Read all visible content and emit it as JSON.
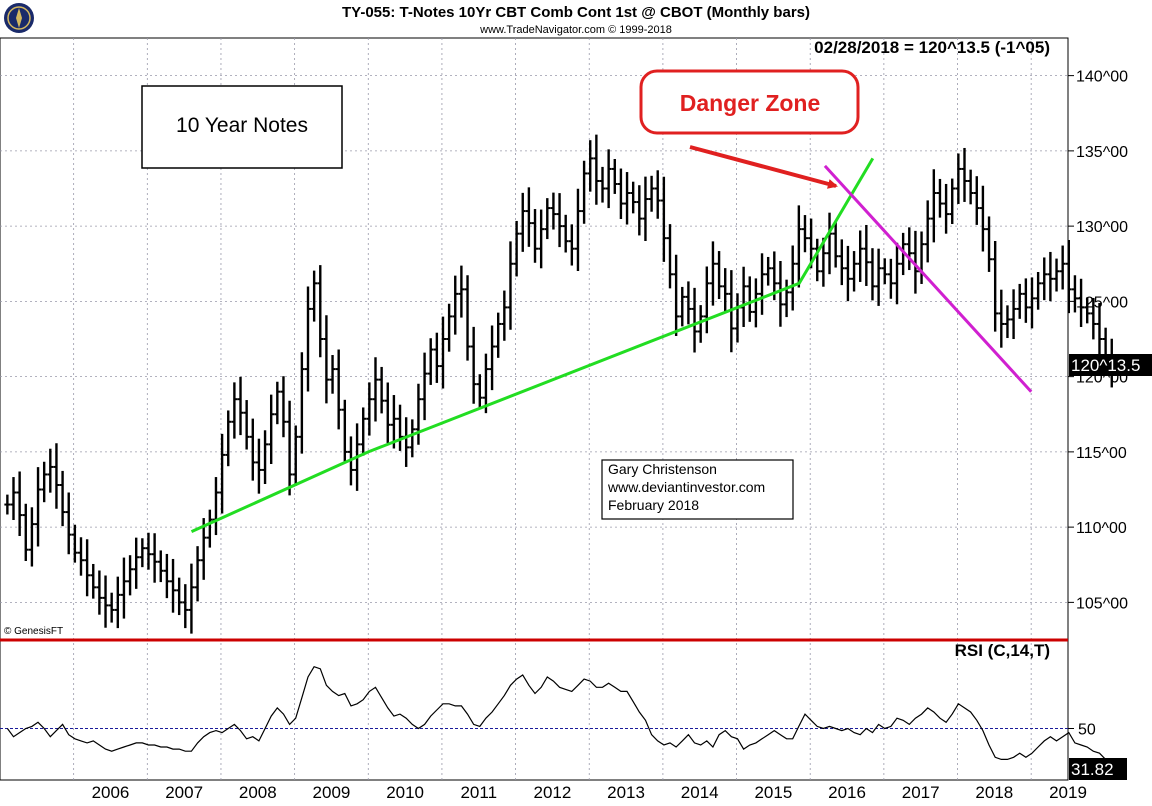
{
  "header": {
    "title": "TY-055:  T-Notes 10Yr CBT Comb Cont 1st @ CBOT  (Monthly bars)",
    "copyright": "www.TradeNavigator.com © 1999-2018",
    "logo_icon": "compass-logo-icon"
  },
  "price_readout": "02/28/2018 = 120^13.5 (-1^05)",
  "last_price_tag": "120^13.5",
  "genesis_label": "© GenesisFT",
  "annotations": {
    "box_label": "10 Year Notes",
    "danger_zone": "Danger Zone",
    "author": [
      "Gary Christenson",
      "www.deviantinvestor.com",
      "February 2018"
    ]
  },
  "colors": {
    "support_line": "#22dd22",
    "resistance_line": "#d020d0",
    "danger": "#e02020",
    "divider": "#cc0000",
    "rsi_line": "#000000",
    "rsi_midline": "#1a1a99"
  },
  "chart_data": [
    {
      "type": "ohlc",
      "title": "TY-055:  T-Notes 10Yr CBT Comb Cont 1st @ CBOT  (Monthly bars)",
      "y_ticks": [
        "105^00",
        "110^00",
        "115^00",
        "120^00",
        "125^00",
        "130^00",
        "135^00",
        "140^00"
      ],
      "y_tick_values": [
        105,
        110,
        115,
        120,
        125,
        130,
        135,
        140
      ],
      "ylim": [
        102.5,
        142.5
      ],
      "x_ticks": [
        "2006",
        "2007",
        "2008",
        "2009",
        "2010",
        "2011",
        "2012",
        "2013",
        "2014",
        "2015",
        "2016",
        "2017",
        "2018",
        "2019"
      ],
      "x_range": [
        2005.0,
        2019.5
      ],
      "series": [
        {
          "type": "monthly-bars",
          "start": 2005.1,
          "step": 0.0833,
          "closes": [
            111.5,
            112.3,
            110.8,
            108.5,
            110.2,
            112.5,
            113.5,
            114.0,
            112.8,
            111.0,
            109.5,
            108.3,
            107.8,
            106.8,
            106.0,
            105.3,
            104.8,
            104.5,
            105.5,
            106.4,
            107.2,
            108.0,
            108.6,
            108.2,
            107.7,
            107.1,
            106.4,
            105.8,
            105.0,
            104.5,
            106.0,
            107.8,
            109.3,
            110.5,
            112.3,
            114.8,
            117.0,
            118.5,
            117.6,
            116.0,
            114.3,
            113.8,
            115.5,
            117.5,
            119.0,
            117.0,
            113.5,
            116.0,
            120.5,
            124.5,
            126.2,
            122.5,
            119.8,
            120.5,
            117.8,
            115.0,
            113.8,
            115.5,
            117.2,
            118.5,
            119.8,
            118.4,
            116.8,
            117.2,
            116.0,
            115.3,
            116.5,
            118.5,
            120.2,
            121.8,
            120.7,
            122.5,
            124.0,
            125.5,
            125.8,
            122.0,
            119.5,
            118.6,
            120.5,
            122.0,
            123.5,
            124.6,
            127.5,
            129.5,
            131.0,
            130.2,
            128.5,
            129.8,
            131.2,
            130.8,
            130.0,
            129.0,
            128.5,
            131.0,
            133.5,
            134.5,
            133.0,
            132.5,
            133.8,
            132.8,
            131.5,
            132.2,
            131.6,
            130.5,
            131.8,
            132.5,
            131.7,
            129.2,
            126.8,
            124.0,
            125.3,
            124.5,
            123.0,
            124.0,
            126.2,
            127.5,
            126.0,
            125.5,
            123.2,
            124.6,
            126.0,
            124.3,
            125.5,
            126.8,
            127.2,
            126.2,
            124.8,
            125.6,
            127.5,
            129.8,
            129.2,
            128.5,
            127.0,
            128.2,
            129.5,
            128.0,
            127.2,
            126.5,
            127.5,
            128.5,
            127.6,
            126.0,
            127.2,
            126.8,
            126.2,
            127.5,
            128.8,
            128.2,
            127.0,
            128.8,
            130.5,
            132.2,
            131.5,
            130.8,
            132.5,
            133.8,
            133.0,
            132.2,
            131.2,
            129.8,
            127.8,
            124.2,
            123.5,
            123.8,
            124.5,
            125.5,
            124.6,
            125.2,
            126.2,
            126.8,
            126.5,
            127.0,
            127.5,
            125.8,
            125.2,
            124.6,
            124.2,
            123.5,
            122.5,
            121.4,
            120.4
          ],
          "name": ""
        },
        {
          "type": "trendline",
          "name": "",
          "points": [
            [
              2007.6,
              109.7
            ],
            [
              2010.0,
              115.0
            ],
            [
              2015.85,
              126.2
            ],
            [
              2016.85,
              134.5
            ]
          ]
        },
        {
          "type": "trendline",
          "name": "",
          "points": [
            [
              2016.2,
              134.0
            ],
            [
              2019.0,
              119.0
            ]
          ]
        }
      ]
    },
    {
      "type": "line",
      "title": "RSI (C,14,T)",
      "y_ticks": [
        "50"
      ],
      "midline": 50,
      "ylim": [
        25,
        92
      ],
      "last_value": "31.82",
      "series": [
        {
          "name": "",
          "start": 2005.1,
          "step": 0.0833,
          "values": [
            50,
            46,
            48,
            50,
            51,
            53,
            50,
            46,
            49,
            52,
            47,
            45,
            44,
            43,
            44,
            42,
            40,
            39,
            40,
            41,
            42,
            43,
            43,
            42,
            42,
            41,
            41,
            40,
            40,
            39,
            39,
            43,
            46,
            48,
            49,
            48,
            50,
            52,
            49,
            45,
            46,
            44,
            50,
            56,
            60,
            57,
            52,
            55,
            65,
            75,
            80,
            79,
            71,
            68,
            66,
            67,
            61,
            62,
            64,
            68,
            70,
            65,
            60,
            56,
            57,
            55,
            52,
            50,
            52,
            56,
            59,
            62,
            62,
            61,
            61,
            57,
            52,
            51,
            55,
            58,
            62,
            66,
            71,
            74,
            76,
            71,
            67,
            70,
            75,
            73,
            70,
            69,
            68,
            71,
            74,
            73,
            70,
            70,
            72,
            70,
            68,
            68,
            63,
            58,
            54,
            47,
            44,
            42,
            43,
            41,
            44,
            47,
            43,
            42,
            44,
            41,
            47,
            49,
            46,
            45,
            40,
            42,
            43,
            45,
            47,
            49,
            47,
            45,
            45,
            51,
            57,
            54,
            51,
            50,
            51,
            50,
            49,
            50,
            48,
            47,
            50,
            48,
            52,
            50,
            51,
            55,
            54,
            52,
            55,
            57,
            60,
            58,
            55,
            53,
            57,
            62,
            60,
            58,
            54,
            49,
            42,
            36,
            35,
            35,
            36,
            38,
            36,
            38,
            41,
            44,
            46,
            44,
            46,
            48,
            43,
            42,
            41,
            39,
            38,
            35,
            32
          ],
          "color": "#000000"
        }
      ]
    }
  ]
}
